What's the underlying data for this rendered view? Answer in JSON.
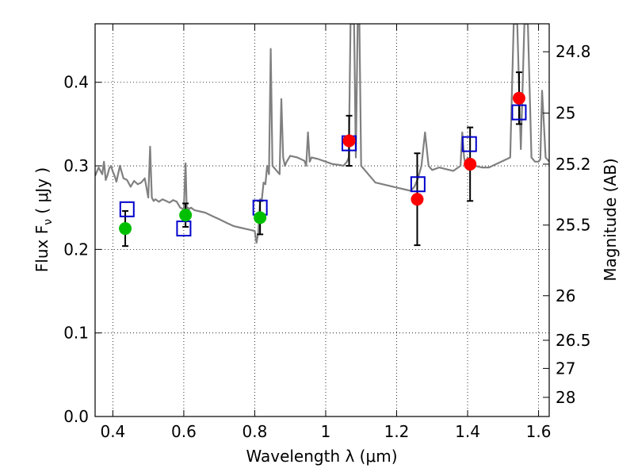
{
  "chart_data": {
    "type": "scatter",
    "title": "",
    "xlabel": "Wavelength  λ (μm)",
    "ylabel": "Flux  F",
    "ylabel_sub": "ν",
    "ylabel_unit": " ( μJy )",
    "y2label": "Magnitude (AB)",
    "xlim": [
      0.35,
      1.63
    ],
    "ylim": [
      0.0,
      0.47
    ],
    "x_ticks": [
      0.4,
      0.6,
      0.8,
      1.0,
      1.2,
      1.4,
      1.6
    ],
    "x_tick_labels": [
      "0.4",
      "0.6",
      "0.8",
      "1",
      "1.2",
      "1.4",
      "1.6"
    ],
    "y_ticks": [
      0.0,
      0.1,
      0.2,
      0.3,
      0.4
    ],
    "y_tick_labels": [
      "0.0",
      "0.1",
      "0.2",
      "0.3",
      "0.4"
    ],
    "y2_ticks": [
      24.8,
      25.0,
      25.2,
      25.5,
      26.0,
      26.5,
      27.0,
      28.0
    ],
    "y2_tick_labels": [
      "24.8",
      "25",
      "25.2",
      "25.5",
      "26",
      "26.5",
      "27",
      "28"
    ],
    "grid": true,
    "colors": {
      "spectrum": "#808080",
      "green": "#00bf00",
      "red": "#ff0000",
      "model": "#0000cc",
      "error": "#000000"
    },
    "spectrum": {
      "name": "",
      "x": [
        0.35,
        0.36,
        0.37,
        0.375,
        0.38,
        0.385,
        0.39,
        0.395,
        0.4,
        0.405,
        0.41,
        0.42,
        0.43,
        0.44,
        0.45,
        0.46,
        0.47,
        0.48,
        0.49,
        0.5,
        0.505,
        0.51,
        0.515,
        0.52,
        0.53,
        0.54,
        0.55,
        0.56,
        0.57,
        0.58,
        0.59,
        0.6,
        0.605,
        0.608,
        0.61,
        0.612,
        0.615,
        0.62,
        0.63,
        0.64,
        0.65,
        0.66,
        0.68,
        0.7,
        0.72,
        0.74,
        0.76,
        0.78,
        0.79,
        0.8,
        0.805,
        0.81,
        0.815,
        0.82,
        0.825,
        0.83,
        0.835,
        0.84,
        0.845,
        0.85,
        0.86,
        0.87,
        0.875,
        0.88,
        0.885,
        0.89,
        0.9,
        0.92,
        0.94,
        0.945,
        0.95,
        0.955,
        0.96,
        0.98,
        1.0,
        1.02,
        1.04,
        1.05,
        1.06,
        1.065,
        1.07,
        1.08,
        1.085,
        1.09,
        1.095,
        1.1,
        1.12,
        1.14,
        1.16,
        1.18,
        1.2,
        1.22,
        1.24,
        1.25,
        1.26,
        1.27,
        1.28,
        1.29,
        1.3,
        1.32,
        1.34,
        1.36,
        1.38,
        1.385,
        1.39,
        1.395,
        1.4,
        1.42,
        1.44,
        1.46,
        1.48,
        1.5,
        1.52,
        1.53,
        1.54,
        1.55,
        1.56,
        1.57,
        1.58,
        1.59,
        1.6,
        1.605,
        1.61,
        1.615,
        1.62,
        1.63
      ],
      "y": [
        0.288,
        0.298,
        0.29,
        0.305,
        0.283,
        0.289,
        0.297,
        0.3,
        0.293,
        0.288,
        0.281,
        0.3,
        0.285,
        0.283,
        0.275,
        0.282,
        0.278,
        0.28,
        0.285,
        0.262,
        0.323,
        0.262,
        0.258,
        0.26,
        0.257,
        0.26,
        0.258,
        0.256,
        0.259,
        0.257,
        0.25,
        0.248,
        0.303,
        0.253,
        0.248,
        0.25,
        0.248,
        0.25,
        0.247,
        0.246,
        0.245,
        0.244,
        0.24,
        0.236,
        0.232,
        0.228,
        0.226,
        0.224,
        0.223,
        0.222,
        0.208,
        0.22,
        0.26,
        0.26,
        0.28,
        0.278,
        0.3,
        0.29,
        0.44,
        0.3,
        0.295,
        0.29,
        0.38,
        0.31,
        0.3,
        0.305,
        0.312,
        0.31,
        0.306,
        0.3,
        0.34,
        0.305,
        0.31,
        0.308,
        0.305,
        0.302,
        0.301,
        0.3,
        0.305,
        0.31,
        0.47,
        0.47,
        0.31,
        0.47,
        0.47,
        0.3,
        0.29,
        0.28,
        0.278,
        0.276,
        0.274,
        0.272,
        0.27,
        0.275,
        0.285,
        0.3,
        0.34,
        0.3,
        0.295,
        0.298,
        0.296,
        0.294,
        0.3,
        0.34,
        0.31,
        0.3,
        0.31,
        0.3,
        0.298,
        0.298,
        0.302,
        0.306,
        0.31,
        0.47,
        0.47,
        0.32,
        0.47,
        0.47,
        0.31,
        0.305,
        0.305,
        0.308,
        0.39,
        0.35,
        0.31,
        0.305
      ]
    },
    "series": [
      {
        "name": "",
        "marker": "circle",
        "color": "#00bf00",
        "x": [
          0.435,
          0.605,
          0.815
        ],
        "y": [
          0.225,
          0.241,
          0.238
        ],
        "yerr": [
          0.021,
          0.014,
          0.02
        ]
      },
      {
        "name": "",
        "marker": "circle",
        "color": "#ff0000",
        "x": [
          1.066,
          1.258,
          1.407,
          1.545
        ],
        "y": [
          0.33,
          0.26,
          0.302,
          0.381
        ],
        "yerr": [
          0.03,
          0.055,
          0.044,
          0.031
        ]
      },
      {
        "name": "",
        "marker": "square-open",
        "color": "#0000cc",
        "x": [
          0.44,
          0.6,
          0.815,
          1.066,
          1.26,
          1.405,
          1.545
        ],
        "y": [
          0.248,
          0.225,
          0.25,
          0.327,
          0.278,
          0.326,
          0.364
        ]
      }
    ]
  }
}
